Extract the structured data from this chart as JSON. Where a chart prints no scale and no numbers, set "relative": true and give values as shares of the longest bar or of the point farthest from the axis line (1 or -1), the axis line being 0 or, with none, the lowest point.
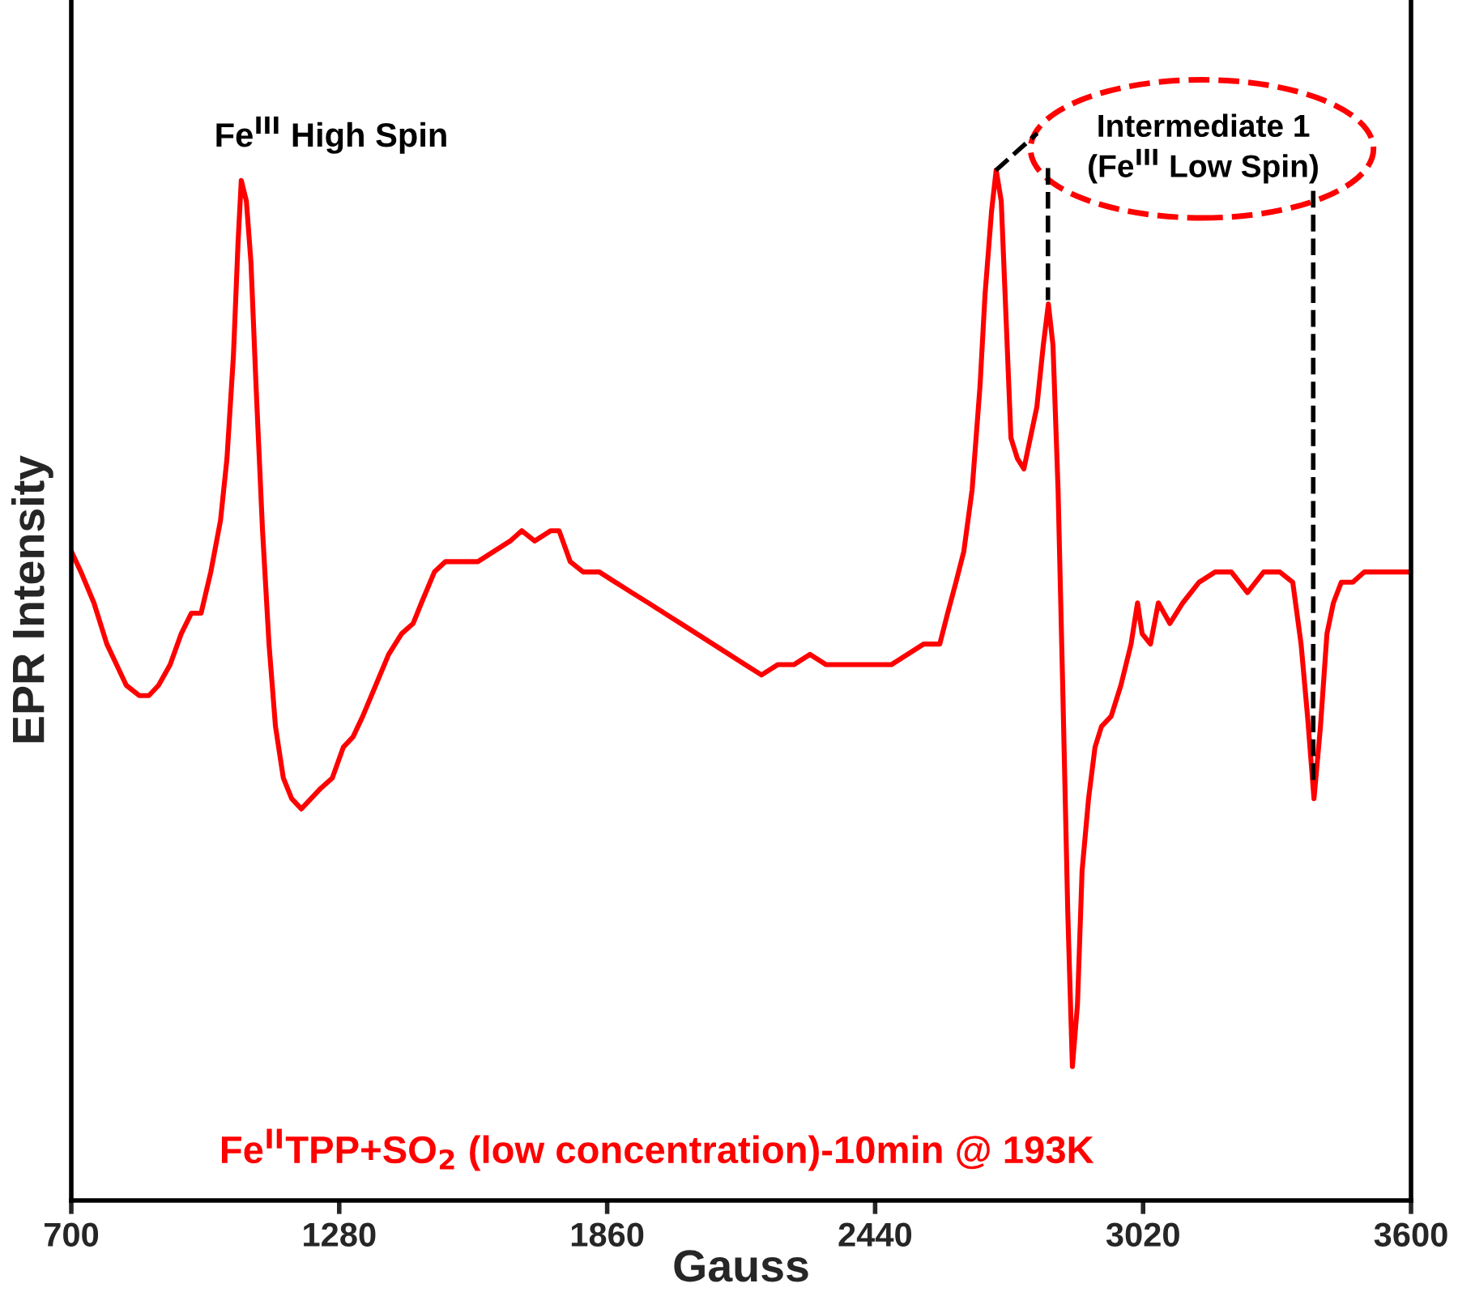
{
  "chart_data": {
    "type": "line",
    "relative": true,
    "xlabel": "Gauss",
    "ylabel": "EPR Intensity",
    "xlim": [
      700,
      3600
    ],
    "xticks": [
      700,
      1280,
      1860,
      2440,
      3020,
      3600
    ],
    "grid": false,
    "tick_labels": "x",
    "annotations": [
      {
        "text": "Fe$^{III}$ High Spin",
        "x": 1068,
        "y": 0.99
      },
      "Intermediate 1\n(Fe$^{III}$ Low Spin)",
      "Fe$^{II}$TPP+SO$_{2}$ (low concentration)-10min @ 193K"
    ],
    "series": [
      {
        "color": "#ff0000",
        "x": [
          700,
          721,
          749,
          777,
          798,
          819,
          847,
          868,
          889,
          914,
          938,
          960,
          981,
          1002,
          1023,
          1037,
          1051,
          1061,
          1068,
          1079,
          1089,
          1100,
          1114,
          1128,
          1142,
          1159,
          1177,
          1198,
          1219,
          1240,
          1265,
          1289,
          1310,
          1331,
          1359,
          1387,
          1415,
          1440,
          1458,
          1486,
          1510,
          1545,
          1580,
          1615,
          1650,
          1675,
          1703,
          1738,
          1756,
          1780,
          1808,
          1843,
          1878,
          1913,
          1949,
          1984,
          2019,
          2054,
          2089,
          2124,
          2159,
          2194,
          2229,
          2264,
          2299,
          2334,
          2369,
          2404,
          2440,
          2475,
          2510,
          2545,
          2580,
          2597,
          2615,
          2632,
          2650,
          2667,
          2678,
          2692,
          2702,
          2713,
          2724,
          2734,
          2748,
          2762,
          2776,
          2790,
          2804,
          2815,
          2825,
          2836,
          2846,
          2857,
          2867,
          2878,
          2888,
          2902,
          2916,
          2930,
          2951,
          2972,
          2994,
          3008,
          3018,
          3036,
          3053,
          3078,
          3106,
          3141,
          3176,
          3211,
          3246,
          3281,
          3316,
          3344,
          3362,
          3376,
          3390,
          3404,
          3418,
          3432,
          3449,
          3474,
          3499,
          3527,
          3562,
          3600
        ],
        "values": [
          0.63,
          0.61,
          0.58,
          0.54,
          0.52,
          0.5,
          0.49,
          0.49,
          0.5,
          0.52,
          0.55,
          0.57,
          0.57,
          0.61,
          0.66,
          0.72,
          0.82,
          0.93,
          0.99,
          0.97,
          0.91,
          0.79,
          0.65,
          0.54,
          0.46,
          0.41,
          0.39,
          0.38,
          0.39,
          0.4,
          0.41,
          0.44,
          0.45,
          0.47,
          0.5,
          0.53,
          0.55,
          0.56,
          0.58,
          0.61,
          0.62,
          0.62,
          0.62,
          0.63,
          0.64,
          0.65,
          0.64,
          0.65,
          0.65,
          0.62,
          0.61,
          0.61,
          0.6,
          0.59,
          0.58,
          0.57,
          0.56,
          0.55,
          0.54,
          0.53,
          0.52,
          0.51,
          0.52,
          0.52,
          0.53,
          0.52,
          0.52,
          0.52,
          0.52,
          0.52,
          0.53,
          0.54,
          0.54,
          0.57,
          0.6,
          0.63,
          0.69,
          0.79,
          0.88,
          0.96,
          1,
          0.97,
          0.85,
          0.74,
          0.72,
          0.71,
          0.74,
          0.77,
          0.83,
          0.87,
          0.83,
          0.69,
          0.5,
          0.28,
          0.13,
          0.19,
          0.32,
          0.39,
          0.44,
          0.46,
          0.47,
          0.5,
          0.54,
          0.58,
          0.55,
          0.54,
          0.58,
          0.56,
          0.58,
          0.6,
          0.61,
          0.61,
          0.59,
          0.61,
          0.61,
          0.6,
          0.54,
          0.47,
          0.39,
          0.46,
          0.55,
          0.58,
          0.6,
          0.6,
          0.61,
          0.61,
          0.61,
          0.61
        ]
      }
    ]
  }
}
